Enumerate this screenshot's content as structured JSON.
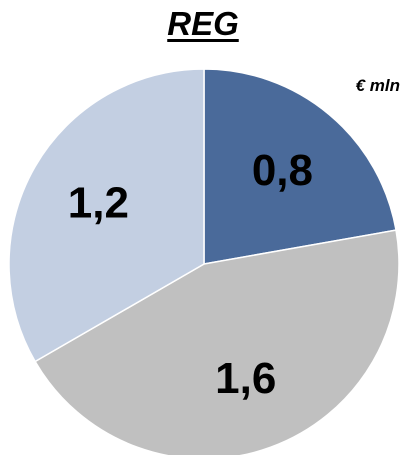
{
  "chart_data": {
    "type": "pie",
    "title": "REG",
    "unit": "€ mln",
    "slices": [
      {
        "label": "0,8",
        "value": 0.8,
        "color": "#4a6a9a"
      },
      {
        "label": "1,6",
        "value": 1.6,
        "color": "#c0c0c0"
      },
      {
        "label": "1,2",
        "value": 1.2,
        "color": "#c3cfe2"
      }
    ],
    "start_angle_deg": 0,
    "direction": "clockwise",
    "slice_border_color": "#ffffff",
    "legend": "none"
  }
}
